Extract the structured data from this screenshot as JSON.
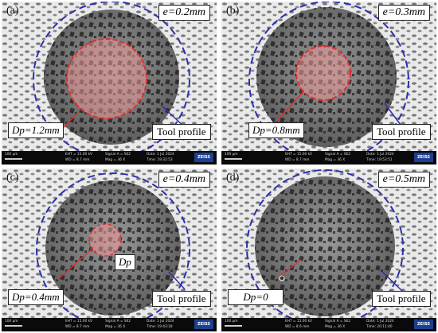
{
  "panels": [
    {
      "tag": "(a)",
      "e_label": "e=0.2mm",
      "dp_label": "Dp=1.2mm",
      "tool_label": "Tool profile",
      "info": {
        "scale": "100 µm",
        "eht": "EHT = 15.00 kV",
        "wd": "WD =  8.7 mm",
        "signal": "Signal A = SE2",
        "mag": "Mag =      36 X",
        "date": "Date: 1 Jul 2024",
        "time": "Time: 19:32:53",
        "brand": "ZEISS"
      }
    },
    {
      "tag": "(b)",
      "e_label": "e=0.3mm",
      "dp_label": "Dp=0.8mm",
      "tool_label": "Tool profile",
      "info": {
        "scale": "100 µm",
        "eht": "EHT = 15.00 kV",
        "wd": "WD =  8.7 mm",
        "signal": "Signal A = SE2",
        "mag": "Mag =      36 X",
        "date": "Date: 1 Jul 2024",
        "time": "Time: 19:53:51",
        "brand": "ZEISS"
      }
    },
    {
      "tag": "(c)",
      "e_label": "e=0.4mm",
      "dp_label": "Dp=0.4mm",
      "dp_inner": "Dp",
      "tool_label": "Tool profile",
      "info": {
        "scale": "100 µm",
        "eht": "EHT = 15.00 kV",
        "wd": "WD =  8.7 mm",
        "signal": "Signal A = SE2",
        "mag": "Mag =      36 X",
        "date": "Date: 1 Jul 2024",
        "time": "Time: 19:43:18",
        "brand": "ZEISS"
      }
    },
    {
      "tag": "(d)",
      "e_label": "e=0.5mm",
      "dp_label": "Dp=0",
      "tool_label": "Tool profile",
      "info": {
        "scale": "100 µm",
        "eht": "EHT = 15.00 kV",
        "wd": "WD =  8.6 mm",
        "signal": "Signal A = SE2",
        "mag": "Mag =      36 X",
        "date": "Date: 1 Jul 2024",
        "time": "Time: 20:11:40",
        "brand": "ZEISS"
      }
    }
  ],
  "colors": {
    "circle": "#2b2fb0",
    "highlight": "#e03030",
    "highlight_fill": "rgba(235,150,150,0.55)",
    "infobar": "#0a0a0a",
    "zeiss": "#1d3f8f"
  }
}
